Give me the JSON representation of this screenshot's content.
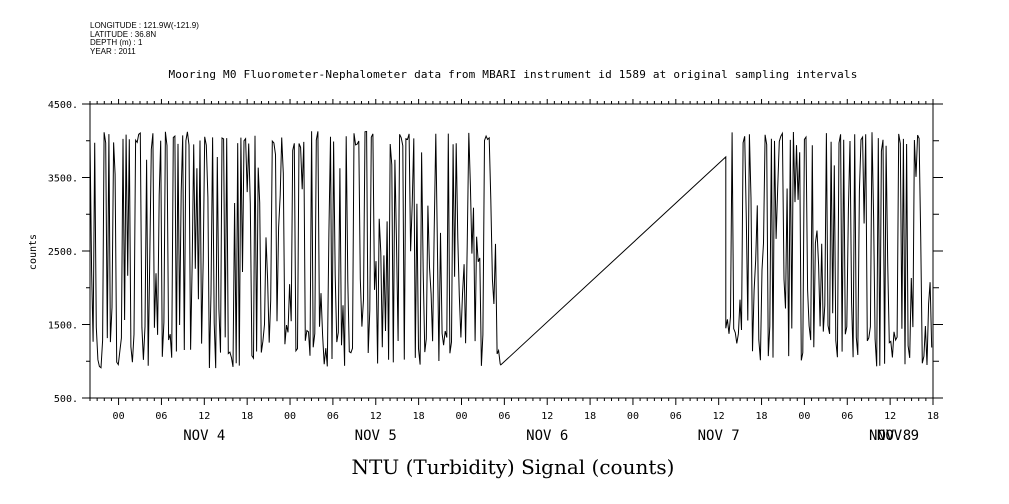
{
  "metadata": {
    "longitude": "LONGITUDE : 121.9W(-121.9)",
    "latitude": "LATITUDE : 36.8N",
    "depth": "DEPTH (m) : 1",
    "year": "YEAR : 2011"
  },
  "footer_title": "NTU (Turbidity) Signal (counts)",
  "chart_data": {
    "type": "line",
    "title": "Mooring M0 Fluorometer-Nephalometer data from MBARI instrument id 1589 at original sampling intervals",
    "ylabel": "counts",
    "xlabel": "",
    "ylim": [
      500,
      4500
    ],
    "xlim_hours": [
      -4,
      114
    ],
    "y_ticks": [
      "4500.",
      "3500.",
      "2500.",
      "1500.",
      "500."
    ],
    "y_tick_values": [
      4500,
      3500,
      2500,
      1500,
      500
    ],
    "x_hour_labels": [
      "00",
      "06",
      "12",
      "18",
      "00",
      "06",
      "12",
      "18",
      "00",
      "06",
      "12",
      "18",
      "00",
      "06",
      "12",
      "18",
      "00",
      "06",
      "12",
      "18",
      "00",
      "06",
      "12"
    ],
    "day_labels": [
      {
        "label": "NOV  4",
        "hour": 12
      },
      {
        "label": "NOV  5",
        "hour": 36
      },
      {
        "label": "NOV  6",
        "hour": 60
      },
      {
        "label": "NOV  7",
        "hour": 84
      },
      {
        "label": "NOV  8",
        "hour": 108
      },
      {
        "label": "NOV  9",
        "hour": 128
      }
    ],
    "grid": false,
    "series": [
      {
        "segments_summary": [
          {
            "from_hour": -4,
            "to_hour": 53.5,
            "min": 900,
            "max": 4130,
            "pattern": "rapid oscillation"
          },
          {
            "from_hour": 53.5,
            "to_hour": 85,
            "start": 950,
            "end": 3780,
            "pattern": "linear interpolation"
          },
          {
            "from_hour": 85,
            "to_hour": 114,
            "min": 900,
            "max": 4130,
            "pattern": "rapid oscillation"
          }
        ]
      }
    ]
  }
}
